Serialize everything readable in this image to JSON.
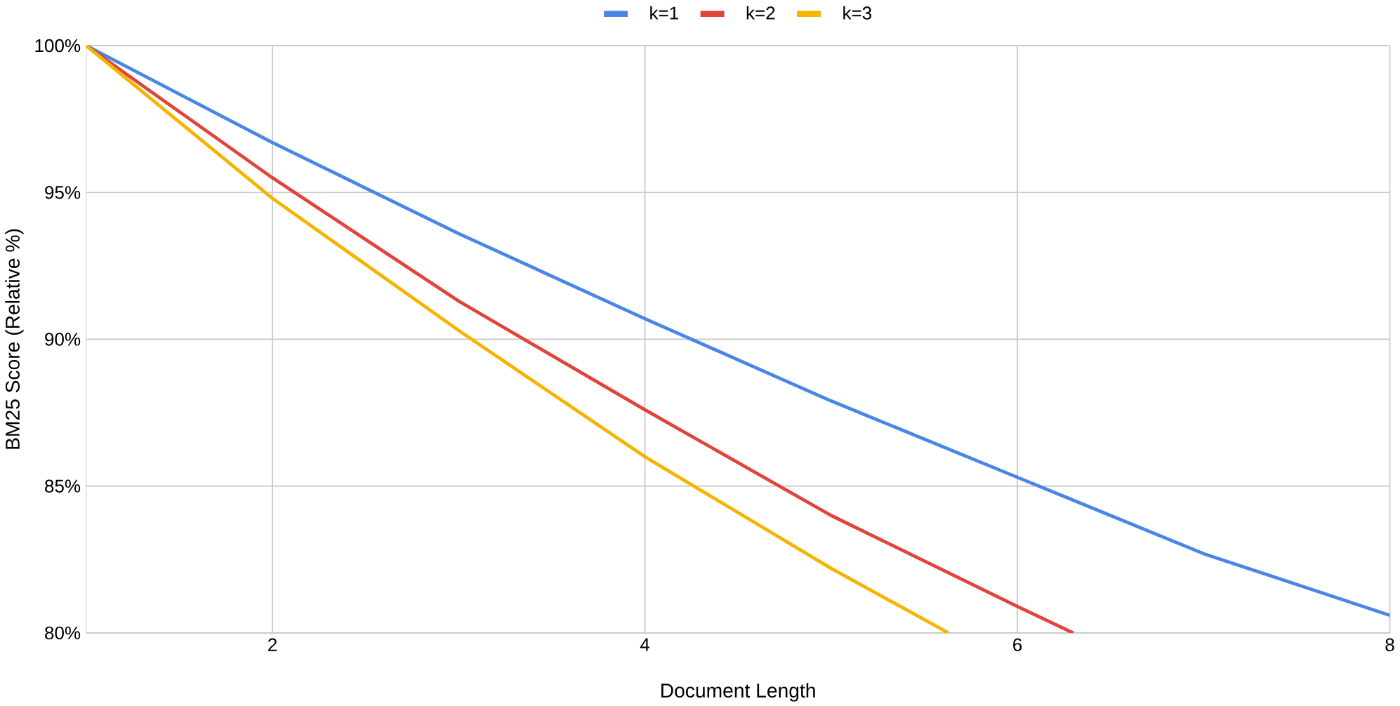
{
  "chart_data": {
    "type": "line",
    "xlabel": "Document Length",
    "ylabel": "BM25 Score (Relative %)",
    "xlim": [
      1,
      8
    ],
    "ylim": [
      80,
      100
    ],
    "xticks": [
      2,
      4,
      6,
      8
    ],
    "yticks": [
      {
        "value": 80,
        "label": "80%"
      },
      {
        "value": 85,
        "label": "85%"
      },
      {
        "value": 90,
        "label": "90%"
      },
      {
        "value": 95,
        "label": "95%"
      },
      {
        "value": 100,
        "label": "100%"
      }
    ],
    "grid": true,
    "legend": "top",
    "marker": "none",
    "line_style": "solid",
    "series": [
      {
        "name": "k=1",
        "color": "#4a86e8",
        "x": [
          1,
          2,
          3,
          4,
          5,
          6,
          7,
          8
        ],
        "values": [
          100,
          96.7,
          93.6,
          90.7,
          87.9,
          85.3,
          82.7,
          80.6
        ]
      },
      {
        "name": "k=2",
        "color": "#e0443a",
        "x": [
          1,
          2,
          3,
          4,
          5,
          6,
          6.3
        ],
        "values": [
          100,
          95.5,
          91.3,
          87.6,
          84.0,
          80.9,
          80
        ]
      },
      {
        "name": "k=3",
        "color": "#f4b400",
        "x": [
          1,
          2,
          3,
          4,
          5,
          5.63
        ],
        "values": [
          100,
          94.8,
          90.3,
          86.0,
          82.2,
          80
        ]
      }
    ]
  }
}
